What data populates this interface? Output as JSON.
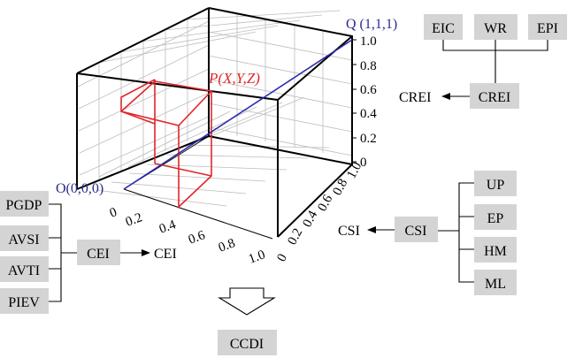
{
  "cube": {
    "axis_x_title": "CEI",
    "axis_y_title": "CSI",
    "x_ticks": [
      "0",
      "0.2",
      "0.4",
      "0.6",
      "0.8",
      "1.0"
    ],
    "y_ticks": [
      "0",
      "0.2",
      "0.4",
      "0.6",
      "0.8",
      "1.0"
    ],
    "z_ticks": [
      "0",
      "0.2",
      "0.4",
      "0.6",
      "0.8",
      "1.0"
    ],
    "origin_label": "O(0,0,0)",
    "q_label": "Q (1,1,1)",
    "p_label": "P(X,Y,Z)",
    "colors": {
      "diagonal": "#2b2bb0",
      "point_box": "#e0262a",
      "labels_blue": "#2b2b8c"
    }
  },
  "crei_group": {
    "inputs": [
      "EIC",
      "WR",
      "EPI"
    ],
    "box_label": "CREI",
    "out_label": "CREI"
  },
  "cei_group": {
    "inputs": [
      "PGDP",
      "AVSI",
      "AVTI",
      "PIEV"
    ],
    "box_label": "CEI",
    "out_label": "CEI"
  },
  "csi_group": {
    "inputs": [
      "UP",
      "EP",
      "HM",
      "ML"
    ],
    "box_label": "CSI",
    "out_label": "CSI"
  },
  "result": {
    "label": "CCDI"
  }
}
